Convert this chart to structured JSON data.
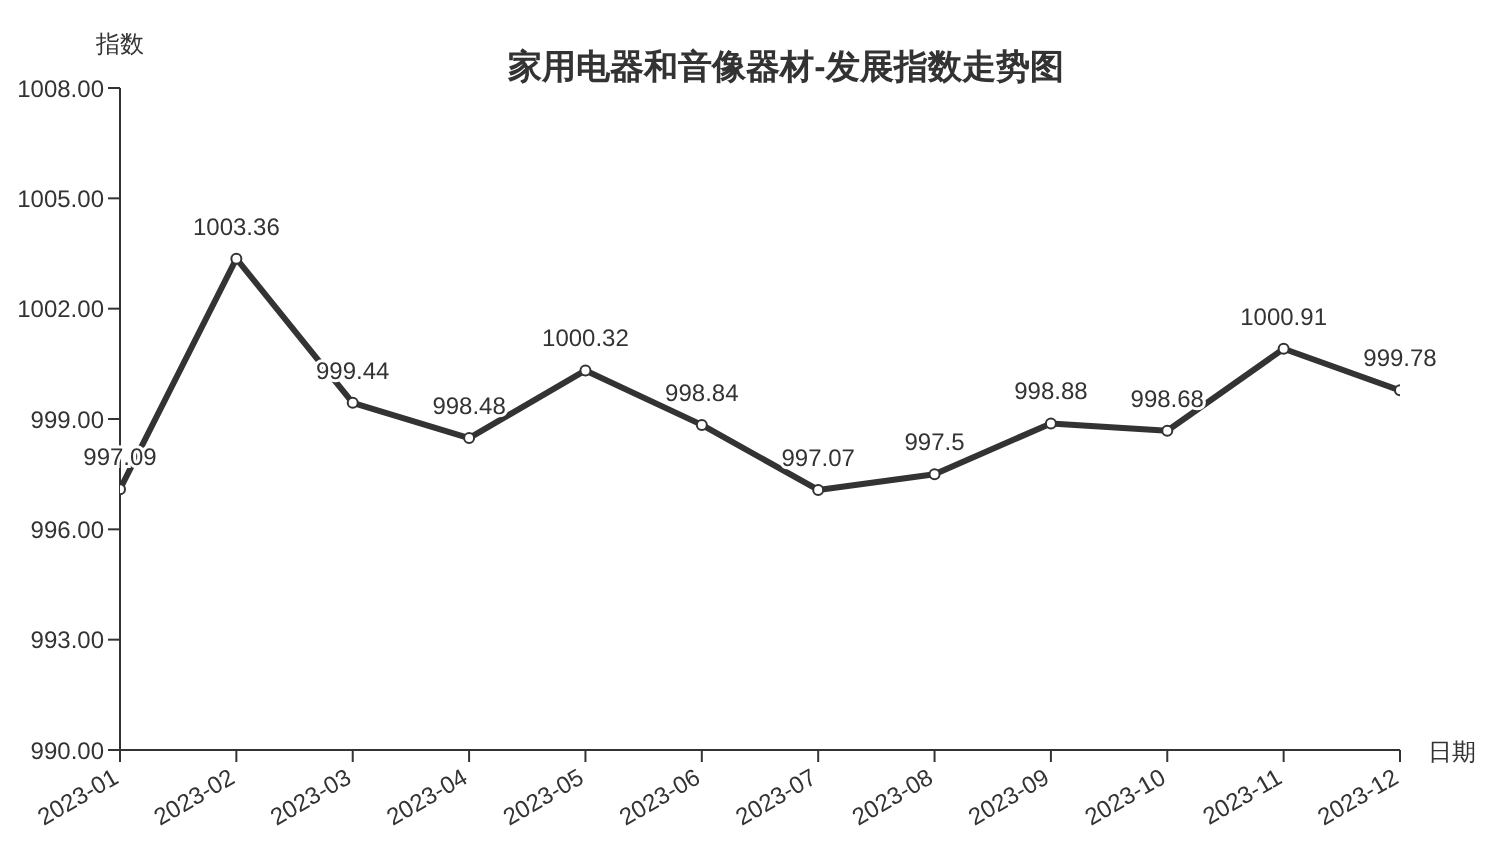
{
  "chart_data": {
    "type": "line",
    "title": "家用电器和音像器材-发展指数走势图",
    "xlabel": "日期",
    "ylabel": "指数",
    "categories": [
      "2023-01",
      "2023-02",
      "2023-03",
      "2023-04",
      "2023-05",
      "2023-06",
      "2023-07",
      "2023-08",
      "2023-09",
      "2023-10",
      "2023-11",
      "2023-12"
    ],
    "series": [
      {
        "color": "#333333",
        "values": [
          997.09,
          1003.36,
          999.44,
          998.48,
          1000.32,
          998.84,
          997.07,
          997.5,
          998.88,
          998.68,
          1000.91,
          999.78
        ]
      }
    ],
    "ylim": [
      990,
      1008
    ],
    "yticks": [
      {
        "value": 990,
        "label": "990.00"
      },
      {
        "value": 993,
        "label": "993.00"
      },
      {
        "value": 996,
        "label": "996.00"
      },
      {
        "value": 999,
        "label": "999.00"
      },
      {
        "value": 1002,
        "label": "1002.00"
      },
      {
        "value": 1005,
        "label": "1005.00"
      },
      {
        "value": 1008,
        "label": "1008.00"
      }
    ],
    "data_labels": true,
    "marker": "circle",
    "line_style": "solid",
    "grid": false
  }
}
